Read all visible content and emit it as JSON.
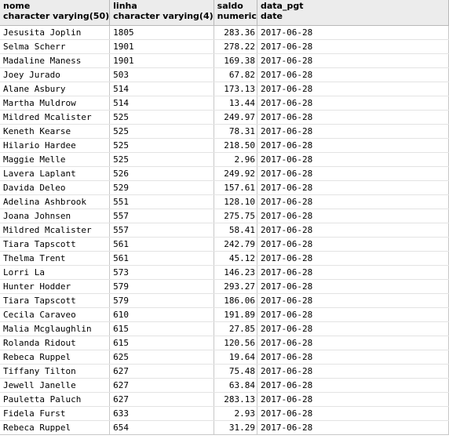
{
  "columns": [
    {
      "name": "nome",
      "type": "character varying(50)"
    },
    {
      "name": "linha",
      "type": "character varying(4)"
    },
    {
      "name": "saldo",
      "type": "numeric"
    },
    {
      "name": "data_pgt",
      "type": "date"
    }
  ],
  "rows": [
    [
      "Jesusita Joplin",
      "1805",
      "283.36",
      "2017-06-28"
    ],
    [
      "Selma Scherr",
      "1901",
      "278.22",
      "2017-06-28"
    ],
    [
      "Madaline Maness",
      "1901",
      "169.38",
      "2017-06-28"
    ],
    [
      "Joey Jurado",
      "503",
      "67.82",
      "2017-06-28"
    ],
    [
      "Alane Asbury",
      "514",
      "173.13",
      "2017-06-28"
    ],
    [
      "Martha Muldrow",
      "514",
      "13.44",
      "2017-06-28"
    ],
    [
      "Mildred Mcalister",
      "525",
      "249.97",
      "2017-06-28"
    ],
    [
      "Keneth Kearse",
      "525",
      "78.31",
      "2017-06-28"
    ],
    [
      "Hilario Hardee",
      "525",
      "218.50",
      "2017-06-28"
    ],
    [
      "Maggie Melle",
      "525",
      "2.96",
      "2017-06-28"
    ],
    [
      "Lavera Laplant",
      "526",
      "249.92",
      "2017-06-28"
    ],
    [
      "Davida Deleo",
      "529",
      "157.61",
      "2017-06-28"
    ],
    [
      "Adelina Ashbrook",
      "551",
      "128.10",
      "2017-06-28"
    ],
    [
      "Joana Johnsen",
      "557",
      "275.75",
      "2017-06-28"
    ],
    [
      "Mildred Mcalister",
      "557",
      "58.41",
      "2017-06-28"
    ],
    [
      "Tiara Tapscott",
      "561",
      "242.79",
      "2017-06-28"
    ],
    [
      "Thelma Trent",
      "561",
      "45.12",
      "2017-06-28"
    ],
    [
      "Lorri La",
      "573",
      "146.23",
      "2017-06-28"
    ],
    [
      "Hunter Hodder",
      "579",
      "293.27",
      "2017-06-28"
    ],
    [
      "Tiara Tapscott",
      "579",
      "186.06",
      "2017-06-28"
    ],
    [
      "Cecila Caraveo",
      "610",
      "191.89",
      "2017-06-28"
    ],
    [
      "Malia Mcglaughlin",
      "615",
      "27.85",
      "2017-06-28"
    ],
    [
      "Rolanda Ridout",
      "615",
      "120.56",
      "2017-06-28"
    ],
    [
      "Rebeca Ruppel",
      "625",
      "19.64",
      "2017-06-28"
    ],
    [
      "Tiffany Tilton",
      "627",
      "75.48",
      "2017-06-28"
    ],
    [
      "Jewell Janelle",
      "627",
      "63.84",
      "2017-06-28"
    ],
    [
      "Pauletta Paluch",
      "627",
      "283.13",
      "2017-06-28"
    ],
    [
      "Fidela Furst",
      "633",
      "2.93",
      "2017-06-28"
    ],
    [
      "Rebeca Ruppel",
      "654",
      "31.29",
      "2017-06-28"
    ]
  ]
}
